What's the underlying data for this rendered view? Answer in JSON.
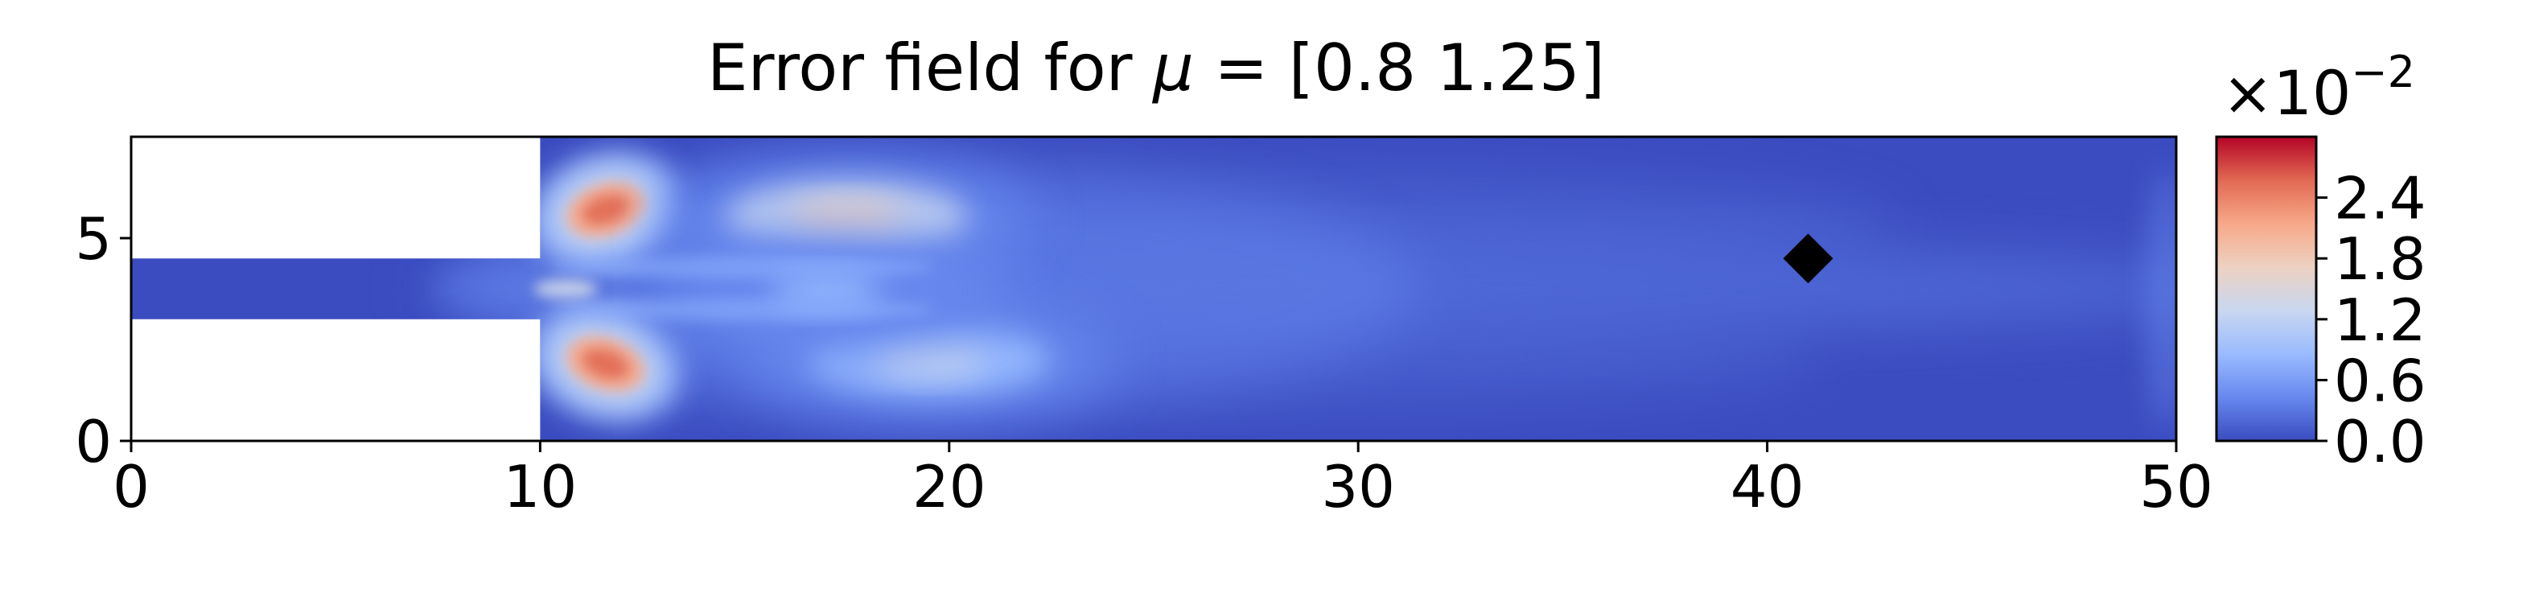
{
  "chart_data": {
    "type": "heatmap",
    "title_text": "Error field for ",
    "title_mu": "μ",
    "title_rest": " = [0.8  1.25]",
    "xlim": [
      0,
      50
    ],
    "ylim": [
      0,
      7.5
    ],
    "x_ticks": [
      0,
      10,
      20,
      30,
      40,
      50
    ],
    "x_tick_labels": [
      "0",
      "10",
      "20",
      "30",
      "40",
      "50"
    ],
    "y_ticks": [
      0,
      5
    ],
    "y_tick_labels": [
      "0",
      "5"
    ],
    "domain": {
      "inlet_channel": {
        "x": [
          0,
          10
        ],
        "y": [
          3,
          4.5
        ]
      },
      "chamber": {
        "x": [
          10,
          50
        ],
        "y": [
          0,
          7.5
        ]
      }
    },
    "hotspots": [
      {
        "x": 11.6,
        "y": 5.7,
        "value": 2.7
      },
      {
        "x": 11.6,
        "y": 1.9,
        "value": 2.7
      },
      {
        "x": 17.5,
        "y": 5.5,
        "value": 1.6
      },
      {
        "x": 19.5,
        "y": 2.0,
        "value": 1.2
      },
      {
        "x": 17.0,
        "y": 3.7,
        "value": 0.8
      }
    ],
    "marker": {
      "x": 41,
      "y": 4.5,
      "shape": "diamond",
      "color": "#000000"
    },
    "colorbar": {
      "colormap": "coolwarm",
      "min": 0.0,
      "max": 3.0,
      "ticks": [
        0.0,
        0.6,
        1.2,
        1.8,
        2.4
      ],
      "tick_labels": [
        "0.0",
        "0.6",
        "1.2",
        "1.8",
        "2.4"
      ],
      "scale_base": "×10",
      "scale_exp": "−2",
      "colors": [
        "#3b4cc0",
        "#6788ee",
        "#9abbff",
        "#c9d7f0",
        "#edd1c2",
        "#f7a889",
        "#e26952",
        "#b40426"
      ]
    }
  }
}
